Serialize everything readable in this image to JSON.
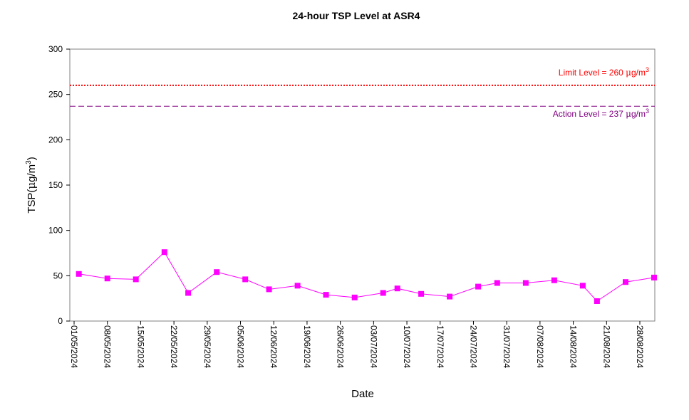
{
  "chart_data": {
    "type": "line",
    "title": "24-hour TSP Level at ASR4",
    "xlabel": "Date",
    "ylabel_prefix": "TSP(",
    "ylabel_mu": "μ",
    "ylabel_unit": "g/m",
    "ylabel_sup": "3",
    "ylabel_suffix": ")",
    "ylim": [
      0,
      300
    ],
    "y_ticks": [
      "0",
      "50",
      "100",
      "150",
      "200",
      "250",
      "300"
    ],
    "x_range": [
      "2024-05-01",
      "2024-08-31"
    ],
    "x_tick_labels": [
      "01/05/2024",
      "08/05/2024",
      "15/05/2024",
      "22/05/2024",
      "29/05/2024",
      "05/06/2024",
      "12/06/2024",
      "19/06/2024",
      "26/06/2024",
      "03/07/2024",
      "10/07/2024",
      "17/07/2024",
      "24/07/2024",
      "31/07/2024",
      "07/08/2024",
      "14/08/2024",
      "21/08/2024",
      "28/08/2024"
    ],
    "grid": false,
    "series": [
      {
        "color": "#ff00ff",
        "marker": "square",
        "points": [
          {
            "x": "2024-05-02",
            "y": 52
          },
          {
            "x": "2024-05-08",
            "y": 47
          },
          {
            "x": "2024-05-14",
            "y": 46
          },
          {
            "x": "2024-05-20",
            "y": 76
          },
          {
            "x": "2024-05-25",
            "y": 31
          },
          {
            "x": "2024-05-31",
            "y": 54
          },
          {
            "x": "2024-06-06",
            "y": 46
          },
          {
            "x": "2024-06-11",
            "y": 35
          },
          {
            "x": "2024-06-17",
            "y": 39
          },
          {
            "x": "2024-06-23",
            "y": 29
          },
          {
            "x": "2024-06-29",
            "y": 26
          },
          {
            "x": "2024-07-05",
            "y": 31
          },
          {
            "x": "2024-07-08",
            "y": 36
          },
          {
            "x": "2024-07-13",
            "y": 30
          },
          {
            "x": "2024-07-19",
            "y": 27
          },
          {
            "x": "2024-07-25",
            "y": 38
          },
          {
            "x": "2024-07-29",
            "y": 42
          },
          {
            "x": "2024-08-04",
            "y": 42
          },
          {
            "x": "2024-08-10",
            "y": 45
          },
          {
            "x": "2024-08-16",
            "y": 39
          },
          {
            "x": "2024-08-19",
            "y": 22
          },
          {
            "x": "2024-08-25",
            "y": 43
          },
          {
            "x": "2024-08-31",
            "y": 48
          }
        ]
      }
    ],
    "reference_lines": [
      {
        "label": "Limit Level  = 260 ",
        "mu": "μ",
        "unit": "g/m",
        "sup": "3",
        "value": 260,
        "color": "#ff0000",
        "style": "dotted",
        "label_position": "above-right"
      },
      {
        "label": "Action Level  = 237 ",
        "mu": "μ",
        "unit": "g/m",
        "sup": "3",
        "value": 237,
        "color": "#800080",
        "style": "dashed",
        "label_position": "below-right"
      }
    ]
  }
}
